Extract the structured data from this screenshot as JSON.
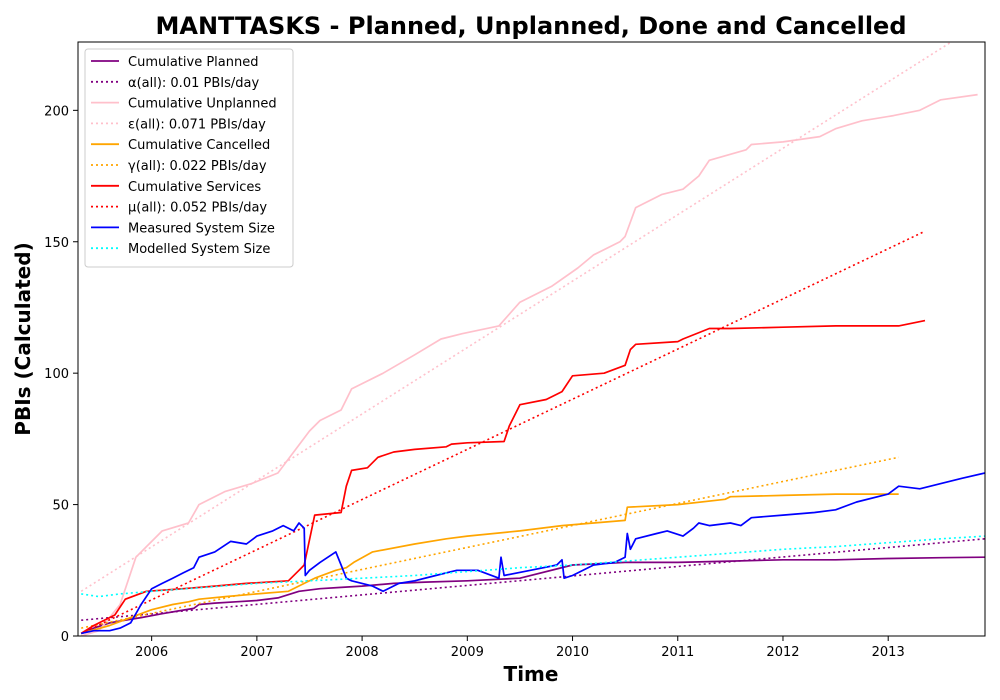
{
  "chart_data": {
    "type": "line",
    "title": "MANTTASKS - Planned, Unplanned, Done  and Cancelled",
    "xlabel": "Time",
    "ylabel": "PBIs (Calculated)",
    "xlim": [
      2005.3,
      2013.92
    ],
    "ylim": [
      0,
      226
    ],
    "x_ticks": [
      2006,
      2007,
      2008,
      2009,
      2010,
      2011,
      2012,
      2013
    ],
    "y_ticks": [
      0,
      50,
      100,
      150,
      200
    ],
    "grid": false,
    "legend_position": "upper-left",
    "series": [
      {
        "name": "Cumulative Planned",
        "color": "#800080",
        "style": "solid",
        "x": [
          2005.33,
          2005.45,
          2005.6,
          2005.75,
          2005.9,
          2006.1,
          2006.25,
          2006.4,
          2006.45,
          2006.6,
          2006.8,
          2007.0,
          2007.2,
          2007.4,
          2007.6,
          2007.8,
          2008.0,
          2008.3,
          2008.6,
          2009.0,
          2009.5,
          2010.0,
          2010.5,
          2011.0,
          2011.5,
          2012.0,
          2012.5,
          2013.0,
          2013.5,
          2013.92
        ],
        "y": [
          1,
          3,
          5,
          6,
          7,
          8.5,
          9.5,
          10.5,
          12,
          12.5,
          13,
          13.5,
          14.5,
          17,
          18,
          18.5,
          19,
          20,
          20.5,
          21,
          22,
          27,
          28,
          28,
          28.5,
          29,
          29,
          29.5,
          29.8,
          30
        ]
      },
      {
        "name": "α(all): 0.01 PBIs/day",
        "color": "#800080",
        "style": "dotted",
        "x": [
          2005.33,
          2013.92
        ],
        "y": [
          6,
          37
        ]
      },
      {
        "name": "Cumulative Unplanned",
        "color": "#FFC0CB",
        "style": "solid",
        "x": [
          2005.33,
          2005.5,
          2005.7,
          2005.85,
          2006.0,
          2006.1,
          2006.35,
          2006.45,
          2006.7,
          2006.95,
          2007.2,
          2007.35,
          2007.5,
          2007.6,
          2007.8,
          2007.9,
          2008.2,
          2008.5,
          2008.75,
          2008.95,
          2009.3,
          2009.5,
          2009.8,
          2010.05,
          2010.2,
          2010.45,
          2010.5,
          2010.6,
          2010.85,
          2011.05,
          2011.2,
          2011.3,
          2011.65,
          2011.7,
          2012.0,
          2012.35,
          2012.5,
          2012.75,
          2013.05,
          2013.3,
          2013.5,
          2013.85
        ],
        "y": [
          0,
          2,
          12,
          30,
          36,
          40,
          43,
          50,
          55,
          58,
          62,
          70,
          78,
          82,
          86,
          94,
          100,
          107,
          113,
          115,
          118,
          127,
          133,
          140,
          145,
          150,
          152,
          163,
          168,
          170,
          175,
          181,
          185,
          187,
          188,
          190,
          193,
          196,
          198,
          200,
          204,
          206
        ]
      },
      {
        "name": "ε(all): 0.071 PBIs/day",
        "color": "#FFC0CB",
        "style": "dotted",
        "x": [
          2005.33,
          2013.6
        ],
        "y": [
          17,
          226
        ]
      },
      {
        "name": "Cumulative Cancelled",
        "color": "#FFA500",
        "style": "solid",
        "x": [
          2005.33,
          2005.6,
          2005.8,
          2006.0,
          2006.2,
          2006.35,
          2006.45,
          2006.7,
          2007.0,
          2007.3,
          2007.45,
          2007.55,
          2007.75,
          2007.85,
          2007.92,
          2008.1,
          2008.5,
          2008.8,
          2009.0,
          2009.5,
          2009.9,
          2010.5,
          2010.52,
          2011.0,
          2011.45,
          2011.5,
          2012.0,
          2012.5,
          2013.1
        ],
        "y": [
          1,
          4,
          7,
          10,
          12,
          13,
          14,
          15,
          16,
          17,
          20,
          22,
          25,
          26,
          28,
          32,
          35,
          37,
          38,
          40,
          42,
          44,
          49,
          50,
          52,
          53,
          53.5,
          54,
          54
        ]
      },
      {
        "name": "γ(all): 0.022 PBIs/day",
        "color": "#FFA500",
        "style": "dotted",
        "x": [
          2005.33,
          2013.1
        ],
        "y": [
          3,
          68
        ]
      },
      {
        "name": "Cumulative Services",
        "color": "#FF0000",
        "style": "solid",
        "x": [
          2005.33,
          2005.45,
          2005.65,
          2005.75,
          2005.95,
          2006.3,
          2006.6,
          2006.9,
          2007.3,
          2007.4,
          2007.45,
          2007.55,
          2007.8,
          2007.85,
          2007.9,
          2008.05,
          2008.15,
          2008.3,
          2008.5,
          2008.8,
          2008.85,
          2009.0,
          2009.35,
          2009.4,
          2009.5,
          2009.75,
          2009.85,
          2009.9,
          2010.0,
          2010.3,
          2010.5,
          2010.55,
          2010.6,
          2011.0,
          2011.05,
          2011.3,
          2011.5,
          2012.0,
          2012.5,
          2013.1,
          2013.35
        ],
        "y": [
          1,
          4,
          8,
          14,
          17,
          18,
          19,
          20,
          21,
          25,
          27,
          46,
          47,
          57,
          63,
          64,
          68,
          70,
          71,
          72,
          73,
          73.5,
          74,
          80,
          88,
          90,
          92,
          93,
          99,
          100,
          103,
          109,
          111,
          112,
          113,
          117,
          117,
          117.5,
          118,
          118,
          120
        ]
      },
      {
        "name": "μ(all): 0.052 PBIs/day",
        "color": "#FF0000",
        "style": "dotted",
        "x": [
          2005.33,
          2013.35
        ],
        "y": [
          1,
          154
        ]
      },
      {
        "name": "Measured System Size",
        "color": "#0000FF",
        "style": "solid",
        "x": [
          2005.33,
          2005.45,
          2005.6,
          2005.7,
          2005.8,
          2005.9,
          2006.0,
          2006.1,
          2006.2,
          2006.3,
          2006.4,
          2006.45,
          2006.6,
          2006.75,
          2006.9,
          2007.0,
          2007.15,
          2007.25,
          2007.35,
          2007.4,
          2007.45,
          2007.46,
          2007.5,
          2007.6,
          2007.75,
          2007.8,
          2007.85,
          2007.9,
          2008.0,
          2008.1,
          2008.2,
          2008.35,
          2008.5,
          2008.7,
          2008.9,
          2009.1,
          2009.3,
          2009.32,
          2009.35,
          2009.6,
          2009.85,
          2009.9,
          2009.92,
          2010.0,
          2010.2,
          2010.4,
          2010.5,
          2010.52,
          2010.55,
          2010.6,
          2010.8,
          2010.9,
          2011.05,
          2011.15,
          2011.2,
          2011.3,
          2011.5,
          2011.6,
          2011.7,
          2012.0,
          2012.3,
          2012.5,
          2012.7,
          2013.0,
          2013.1,
          2013.3,
          2013.5,
          2013.7,
          2013.92
        ],
        "y": [
          1,
          2,
          2,
          3,
          5,
          12,
          18,
          20,
          22,
          24,
          26,
          30,
          32,
          36,
          35,
          38,
          40,
          42,
          40,
          43,
          41,
          23,
          25,
          28,
          32,
          27,
          22,
          21,
          20,
          19,
          17,
          20,
          21,
          23,
          25,
          25,
          22,
          30,
          23,
          25,
          27,
          29,
          22,
          23,
          27,
          28,
          30,
          39,
          33,
          37,
          39,
          40,
          38,
          41,
          43,
          42,
          43,
          42,
          45,
          46,
          47,
          48,
          51,
          54,
          57,
          56,
          58,
          60,
          62
        ]
      },
      {
        "name": "Modelled System Size",
        "color": "#00FFFF",
        "style": "dotted",
        "x": [
          2005.33,
          2005.5,
          2005.7,
          2006.0,
          2006.5,
          2007.0,
          2007.5,
          2008.0,
          2008.5,
          2009.0,
          2009.5,
          2010.0,
          2010.5,
          2011.0,
          2011.5,
          2012.0,
          2012.5,
          2013.0,
          2013.5,
          2013.92
        ],
        "y": [
          16,
          15,
          16,
          17,
          18.5,
          20,
          21,
          22,
          23,
          24.5,
          26,
          27,
          28.5,
          30,
          31.5,
          33,
          34,
          35.5,
          37,
          38
        ]
      }
    ]
  }
}
